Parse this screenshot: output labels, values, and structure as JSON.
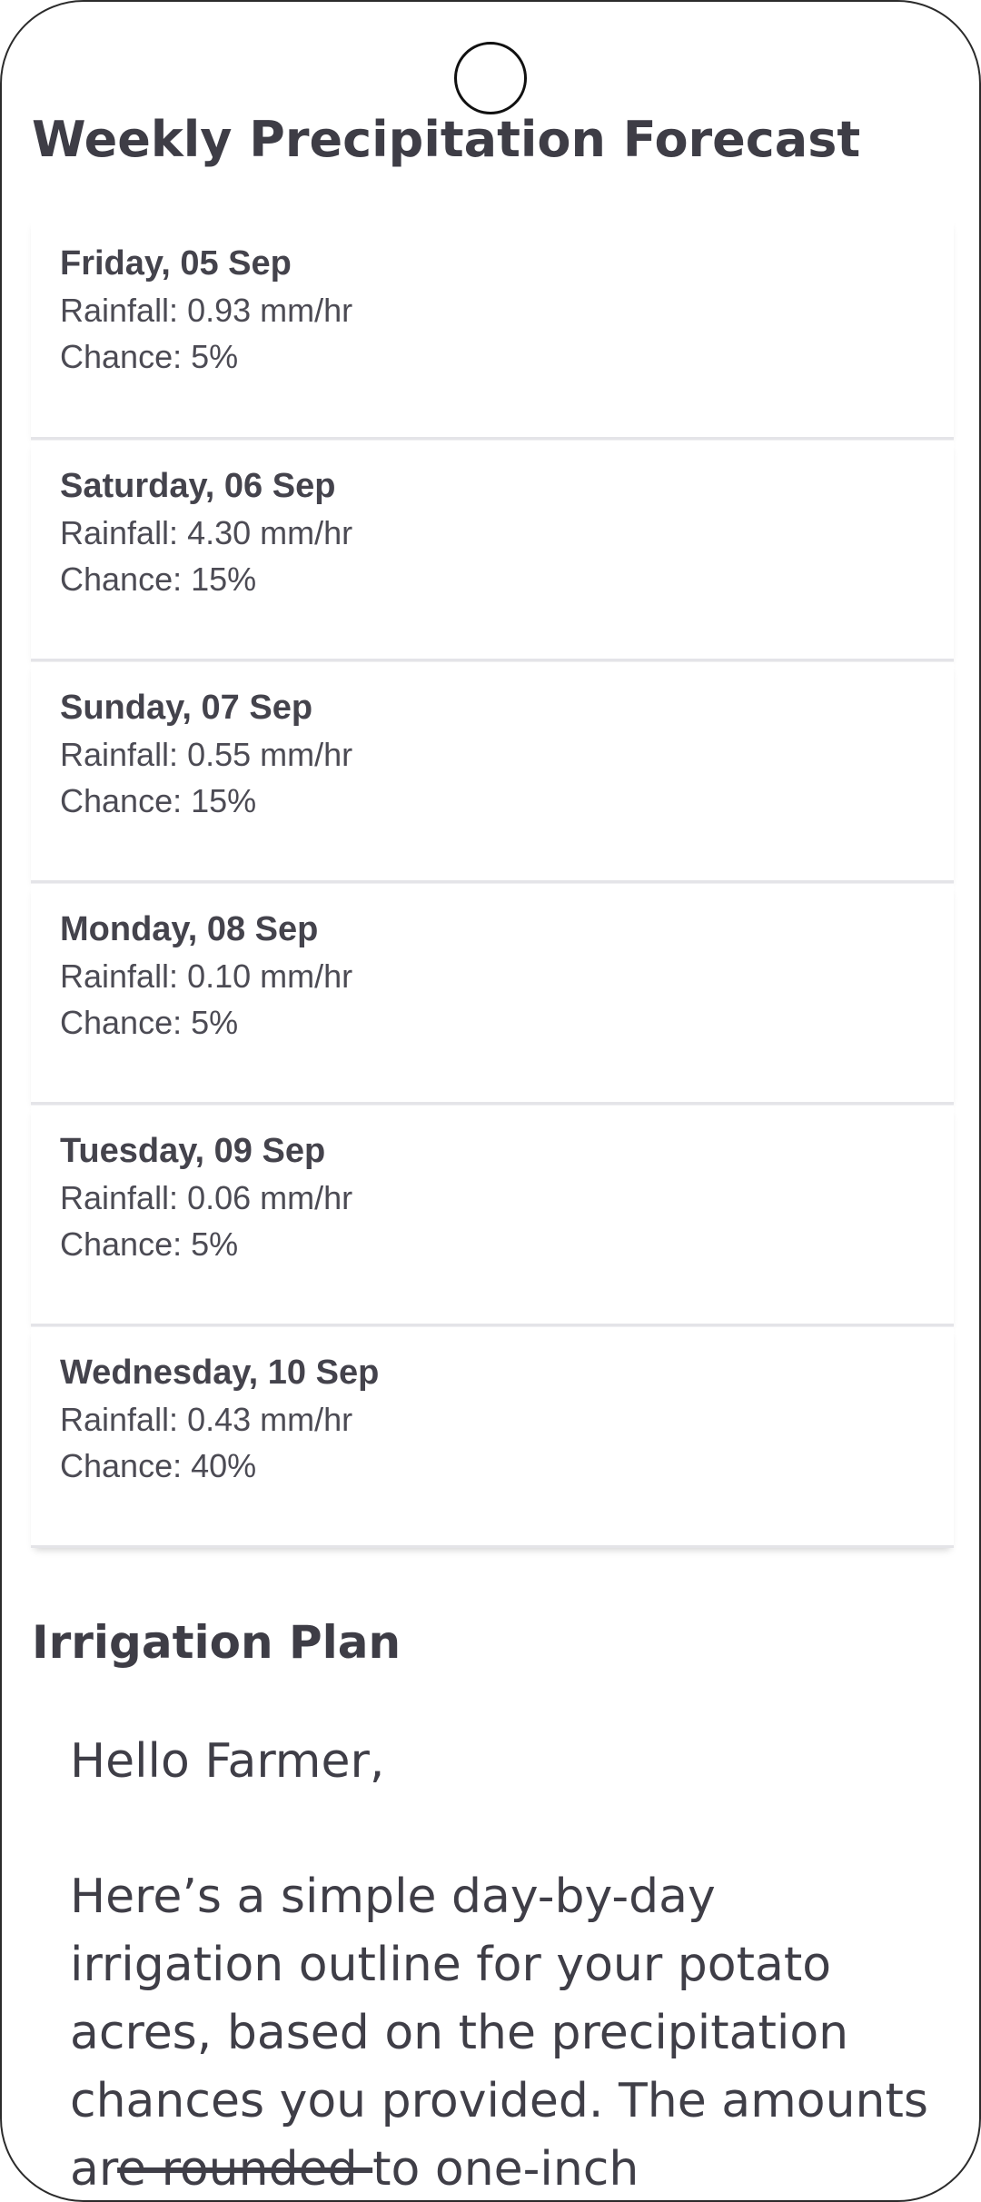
{
  "page": {
    "title": "Weekly Precipitation Forecast"
  },
  "forecast": {
    "days": [
      {
        "date": "Friday, 05 Sep",
        "rainfall": "Rainfall: 0.93 mm/hr",
        "chance": "Chance: 5%"
      },
      {
        "date": "Saturday, 06 Sep",
        "rainfall": "Rainfall: 4.30 mm/hr",
        "chance": "Chance: 15%"
      },
      {
        "date": "Sunday, 07 Sep",
        "rainfall": "Rainfall: 0.55 mm/hr",
        "chance": "Chance: 15%"
      },
      {
        "date": "Monday, 08 Sep",
        "rainfall": "Rainfall: 0.10 mm/hr",
        "chance": "Chance: 5%"
      },
      {
        "date": "Tuesday, 09 Sep",
        "rainfall": "Rainfall: 0.06 mm/hr",
        "chance": "Chance: 5%"
      },
      {
        "date": "Wednesday, 10 Sep",
        "rainfall": "Rainfall: 0.43 mm/hr",
        "chance": "Chance: 40%"
      }
    ]
  },
  "irrigation": {
    "title": "Irrigation Plan",
    "greeting": "Hello Farmer,",
    "body_part1": "Here’s a simple day-by-day irrigation outline for your potato acres, based on the precipitation chances you provided. The amounts ar",
    "body_struck": "e rounded ",
    "body_part2": "to one-inch"
  }
}
